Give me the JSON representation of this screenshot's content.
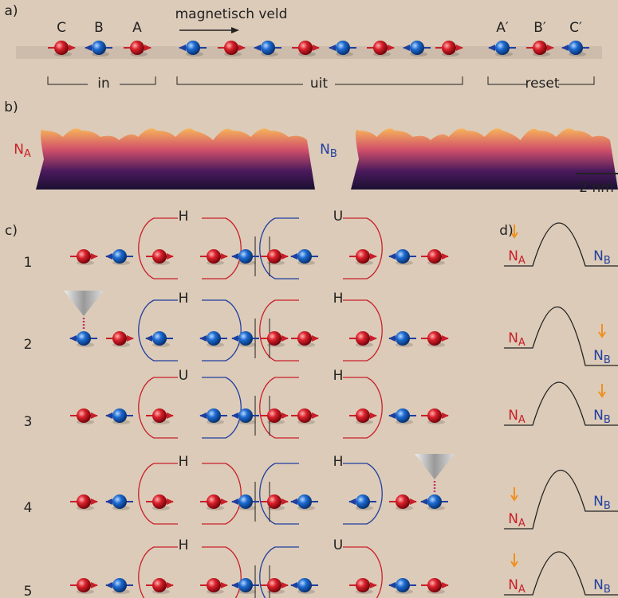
{
  "panel_a": {
    "label": "a)",
    "atoms": [
      "C",
      "B",
      "A"
    ],
    "field": "magnetisch veld",
    "atoms_prime": [
      "A′",
      "B′",
      "C′"
    ],
    "ranges": [
      "in",
      "uit",
      "reset"
    ]
  },
  "panel_b": {
    "label": "b)",
    "left": {
      "main": "N",
      "sub": "A"
    },
    "right": {
      "main": "N",
      "sub": "B"
    },
    "scale": "2 nm"
  },
  "panel_c": {
    "label": "c)",
    "rows": [
      {
        "number": "1",
        "left": "H",
        "right": "U"
      },
      {
        "number": "2",
        "left": "H",
        "right": "H"
      },
      {
        "number": "3",
        "left": "U",
        "right": "H"
      },
      {
        "number": "4",
        "left": "H",
        "right": "H"
      },
      {
        "number": "5",
        "left": "H",
        "right": "U"
      }
    ]
  },
  "panel_d": {
    "label": "d)",
    "rows": [
      {
        "left": {
          "main": "N",
          "sub": "A"
        },
        "right": {
          "main": "N",
          "sub": "B"
        }
      },
      {
        "left": {
          "main": "N",
          "sub": "A"
        },
        "right": {
          "main": "N",
          "sub": "B"
        }
      },
      {
        "left": {
          "main": "N",
          "sub": "A"
        },
        "right": {
          "main": "N",
          "sub": "B"
        }
      },
      {
        "left": {
          "main": "N",
          "sub": "A"
        },
        "right": {
          "main": "N",
          "sub": "B"
        }
      },
      {
        "left": {
          "main": "N",
          "sub": "A"
        },
        "right": {
          "main": "N",
          "sub": "B"
        }
      }
    ]
  }
}
